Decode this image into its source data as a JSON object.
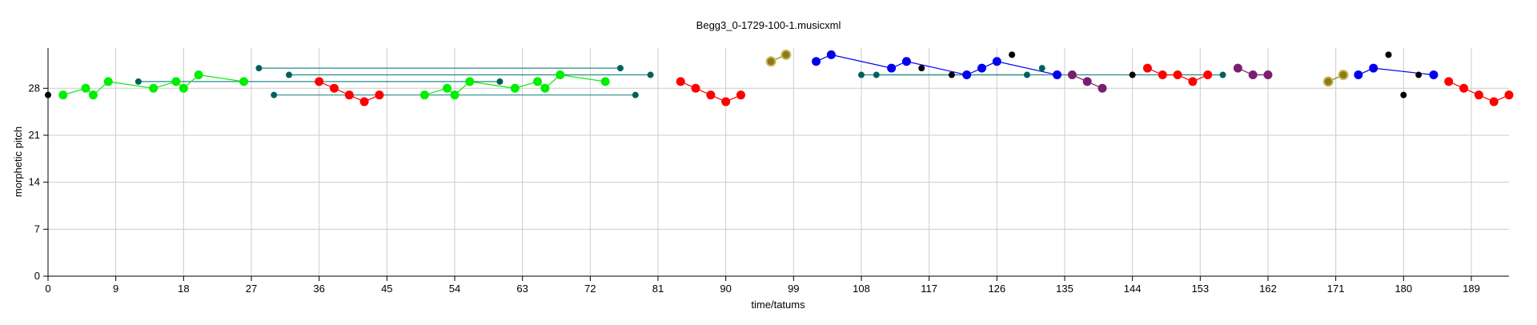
{
  "chart_data": {
    "type": "scatter",
    "title": "Begg3_0-1729-100-1.musicxml",
    "xlabel": "time/tatums",
    "ylabel": "morphetic pitch",
    "xlim": [
      0,
      194
    ],
    "ylim": [
      0,
      34
    ],
    "xticks": [
      0,
      9,
      18,
      27,
      36,
      45,
      54,
      63,
      72,
      81,
      90,
      99,
      108,
      117,
      126,
      135,
      144,
      153,
      162,
      171,
      180,
      189
    ],
    "yticks": [
      0,
      7,
      14,
      21,
      28
    ],
    "grid": true,
    "series": [
      {
        "color": "#00ee00",
        "points": [
          [
            2,
            27
          ],
          [
            5,
            28
          ],
          [
            6,
            27
          ],
          [
            8,
            29
          ],
          [
            14,
            28
          ],
          [
            17,
            29
          ],
          [
            18,
            28
          ],
          [
            20,
            30
          ],
          [
            26,
            29
          ],
          [
            50,
            27
          ],
          [
            53,
            28
          ],
          [
            54,
            27
          ],
          [
            56,
            29
          ],
          [
            62,
            28
          ],
          [
            65,
            29
          ],
          [
            66,
            28
          ],
          [
            68,
            30
          ],
          [
            74,
            29
          ]
        ]
      },
      {
        "color": "#ff0000",
        "points": [
          [
            36,
            29
          ],
          [
            38,
            28
          ],
          [
            40,
            27
          ],
          [
            42,
            26
          ],
          [
            44,
            27
          ],
          [
            84,
            29
          ],
          [
            86,
            28
          ],
          [
            88,
            27
          ],
          [
            90,
            26
          ],
          [
            92,
            27
          ],
          [
            146,
            31
          ],
          [
            148,
            30
          ],
          [
            150,
            30
          ],
          [
            152,
            29
          ],
          [
            154,
            30
          ],
          [
            186,
            29
          ],
          [
            188,
            28
          ],
          [
            190,
            27
          ],
          [
            192,
            26
          ],
          [
            194,
            27
          ]
        ]
      },
      {
        "color": "#0000ee",
        "points": [
          [
            102,
            32
          ],
          [
            104,
            33
          ],
          [
            112,
            31
          ],
          [
            114,
            32
          ],
          [
            122,
            30
          ],
          [
            124,
            31
          ],
          [
            126,
            32
          ],
          [
            134,
            30
          ],
          [
            174,
            30
          ],
          [
            176,
            31
          ],
          [
            184,
            30
          ]
        ]
      },
      {
        "color": "#7a1f70",
        "points": [
          [
            136,
            30
          ],
          [
            138,
            29
          ],
          [
            140,
            28
          ],
          [
            158,
            31
          ],
          [
            160,
            30
          ],
          [
            162,
            30
          ]
        ]
      },
      {
        "color": "#8a7a1a",
        "points": [
          [
            96,
            32
          ],
          [
            98,
            33
          ],
          [
            170,
            29
          ],
          [
            172,
            30
          ]
        ]
      },
      {
        "color": "#000000",
        "points": [
          [
            0,
            27
          ],
          [
            116,
            31
          ],
          [
            120,
            30
          ],
          [
            128,
            33
          ],
          [
            144,
            30
          ],
          [
            178,
            33
          ],
          [
            180,
            27
          ],
          [
            182,
            30
          ]
        ]
      },
      {
        "color": "#006060",
        "points": [
          [
            12,
            29
          ],
          [
            30,
            27
          ],
          [
            28,
            31
          ],
          [
            32,
            30
          ],
          [
            60,
            29
          ],
          [
            76,
            31
          ],
          [
            78,
            27
          ],
          [
            80,
            30
          ],
          [
            108,
            30
          ],
          [
            110,
            30
          ],
          [
            130,
            30
          ],
          [
            132,
            31
          ],
          [
            156,
            30
          ]
        ]
      }
    ]
  }
}
